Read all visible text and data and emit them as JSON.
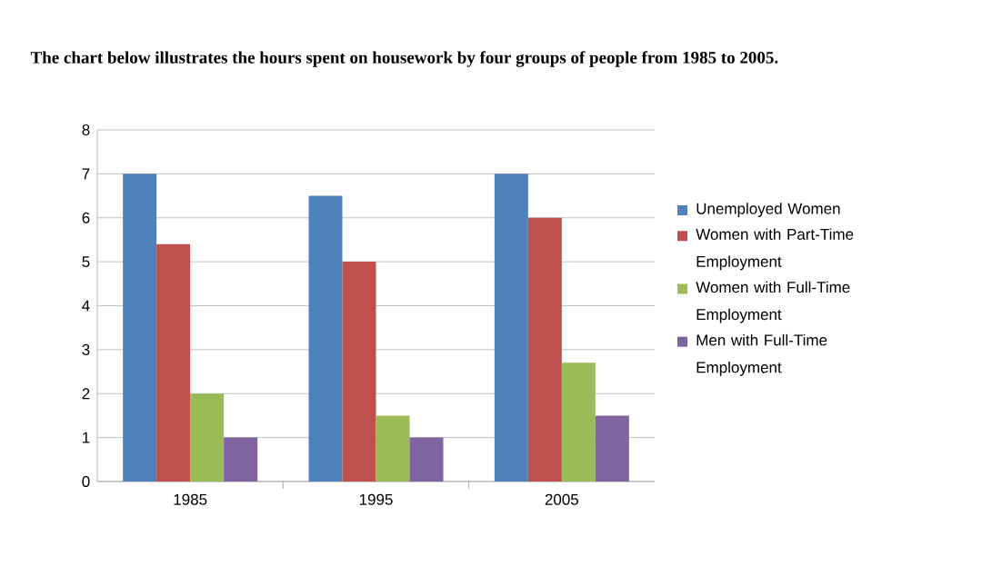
{
  "chart_data": {
    "type": "bar",
    "title": "The chart below illustrates the hours spent on housework by four groups of people from 1985 to 2005.",
    "categories": [
      "1985",
      "1995",
      "2005"
    ],
    "series": [
      {
        "name": "Unemployed Women",
        "color": "#4f81bd",
        "values": [
          7,
          6.5,
          7
        ]
      },
      {
        "name": "Women with Part-Time Employment",
        "color": "#c0504d",
        "values": [
          5.4,
          5,
          6
        ]
      },
      {
        "name": "Women with Full-Time Employment",
        "color": "#9bbb59",
        "values": [
          2,
          1.5,
          2.7
        ]
      },
      {
        "name": "Men with Full-Time Employment",
        "color": "#8064a2",
        "values": [
          1,
          1,
          1.5
        ]
      }
    ],
    "ylim": [
      0,
      8
    ],
    "yticks": [
      0,
      1,
      2,
      3,
      4,
      5,
      6,
      7,
      8
    ],
    "grid": "y",
    "legend": "right"
  }
}
